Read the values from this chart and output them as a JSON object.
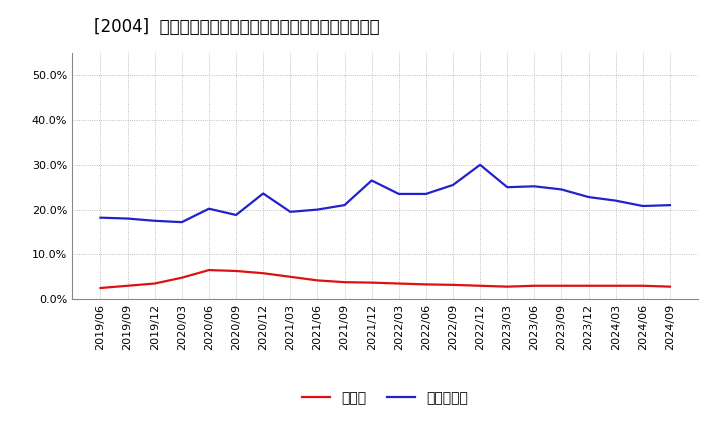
{
  "title": "[2004]  現預金、有利子負債の総資産に対する比率の推移",
  "x_labels": [
    "2019/06",
    "2019/09",
    "2019/12",
    "2020/03",
    "2020/06",
    "2020/09",
    "2020/12",
    "2021/03",
    "2021/06",
    "2021/09",
    "2021/12",
    "2022/03",
    "2022/06",
    "2022/09",
    "2022/12",
    "2023/03",
    "2023/06",
    "2023/09",
    "2023/12",
    "2024/03",
    "2024/06",
    "2024/09"
  ],
  "cash": [
    0.025,
    0.03,
    0.035,
    0.048,
    0.065,
    0.063,
    0.058,
    0.05,
    0.042,
    0.038,
    0.037,
    0.035,
    0.033,
    0.032,
    0.03,
    0.028,
    0.03,
    0.03,
    0.03,
    0.03,
    0.03,
    0.028
  ],
  "debt": [
    0.182,
    0.18,
    0.175,
    0.172,
    0.202,
    0.188,
    0.236,
    0.195,
    0.2,
    0.21,
    0.265,
    0.235,
    0.235,
    0.255,
    0.3,
    0.25,
    0.252,
    0.245,
    0.228,
    0.22,
    0.208,
    0.21
  ],
  "cash_color": "#dd1111",
  "debt_color": "#2222cc",
  "background_color": "#ffffff",
  "plot_bg_color": "#ffffff",
  "grid_color": "#aaaaaa",
  "ylim": [
    0.0,
    0.55
  ],
  "yticks": [
    0.0,
    0.1,
    0.2,
    0.3,
    0.4,
    0.5
  ],
  "legend_cash": "現預金",
  "legend_debt": "有利子負債",
  "title_fontsize": 12,
  "legend_fontsize": 10,
  "tick_fontsize": 8,
  "line_width": 1.6
}
